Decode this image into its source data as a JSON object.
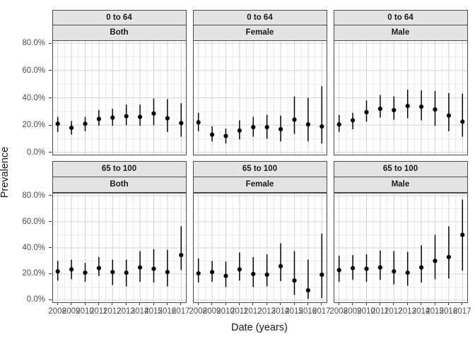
{
  "chart_data": {
    "type": "scatter",
    "subtype": "point estimates with vertical error bars (confidence intervals), faceted grid",
    "title": "",
    "xlabel": "Date (years)",
    "ylabel": "Prevalence",
    "legend": "none",
    "grid": "on",
    "facet_rows": [
      "0 to 64",
      "65 to 100"
    ],
    "facet_cols": [
      "Both",
      "Female",
      "Male"
    ],
    "x": [
      2008,
      2009,
      2010,
      2011,
      2012,
      2013,
      2014,
      2015,
      2016,
      2017
    ],
    "y_axis": {
      "ticks": [
        0,
        20,
        40,
        60,
        80
      ],
      "tick_labels": [
        "0.0%",
        "20.0%",
        "40.0%",
        "60.0%",
        "80.0%"
      ],
      "minor_ticks": [
        10,
        30,
        50,
        70
      ],
      "range_pct": [
        -2.2,
        82.2
      ]
    },
    "panels": [
      {
        "facet_row": "0 to 64",
        "facet_col": "Both",
        "estimate_pct": [
          21,
          18,
          21,
          24.5,
          25.5,
          26.5,
          26,
          28.5,
          25,
          21.5
        ],
        "ci_low_pct": [
          15,
          13,
          15.5,
          19.5,
          19.5,
          20,
          19.5,
          20,
          15,
          11.5
        ],
        "ci_high_pct": [
          26,
          23,
          26,
          31,
          32,
          35,
          35,
          39.5,
          39,
          36
        ]
      },
      {
        "facet_row": "0 to 64",
        "facet_col": "Female",
        "estimate_pct": [
          22,
          13,
          12,
          16,
          18.5,
          18.5,
          17,
          24,
          20.5,
          19
        ],
        "ci_low_pct": [
          15.5,
          8,
          6.5,
          9.5,
          11.5,
          10,
          8,
          13.5,
          8,
          6.5
        ],
        "ci_high_pct": [
          29,
          19,
          17.5,
          23.5,
          26,
          27.5,
          27,
          41,
          40,
          48.5
        ]
      },
      {
        "facet_row": "0 to 64",
        "facet_col": "Male",
        "estimate_pct": [
          20.5,
          23.5,
          29.5,
          32,
          31,
          34,
          33.5,
          31.5,
          27,
          22.5
        ],
        "ci_low_pct": [
          15,
          17,
          22.5,
          25.5,
          24,
          25,
          23.5,
          19.5,
          15.5,
          11.5
        ],
        "ci_high_pct": [
          27.5,
          29,
          38,
          42,
          41,
          46,
          45.5,
          45,
          43.5,
          43
        ]
      },
      {
        "facet_row": "65 to 100",
        "facet_col": "Both",
        "estimate_pct": [
          22,
          23.5,
          21,
          24.5,
          21.5,
          21,
          25,
          24,
          21.5,
          34.5
        ],
        "ci_low_pct": [
          15,
          16,
          14,
          18.5,
          11.5,
          10.5,
          14,
          13.5,
          10.5,
          23
        ],
        "ci_high_pct": [
          30,
          31,
          28.5,
          33,
          31,
          31,
          37.5,
          39,
          38.5,
          56.5
        ]
      },
      {
        "facet_row": "65 to 100",
        "facet_col": "Female",
        "estimate_pct": [
          20.5,
          21.5,
          18.5,
          23.5,
          20,
          19.5,
          26,
          15,
          7.5,
          19.5
        ],
        "ci_low_pct": [
          13.5,
          14,
          10,
          15,
          10,
          10.5,
          14.5,
          4,
          1,
          1.5
        ],
        "ci_high_pct": [
          32,
          30,
          29.5,
          36.5,
          33,
          35,
          43.5,
          37.5,
          31,
          51
        ]
      },
      {
        "facet_row": "65 to 100",
        "facet_col": "Male",
        "estimate_pct": [
          23,
          24.5,
          24,
          25,
          22,
          21,
          25,
          30,
          33,
          50
        ],
        "ci_low_pct": [
          14,
          15.5,
          14,
          15.5,
          12,
          11,
          13.5,
          16,
          16.5,
          22.5
        ],
        "ci_high_pct": [
          34,
          34.5,
          35,
          38,
          37.5,
          37,
          42,
          50,
          56.5,
          77
        ]
      }
    ],
    "style": {
      "point_color": "#000000",
      "errorbar_color": "#000000",
      "strip_fill": "#e4e4e4",
      "panel_border": "#4a4a4a",
      "grid_major": "#d4d4d4",
      "grid_minor": "#ebebeb",
      "axis_text_color": "#4d4d4d",
      "title_color": "#1a1a1a",
      "background": "#ffffff"
    }
  }
}
